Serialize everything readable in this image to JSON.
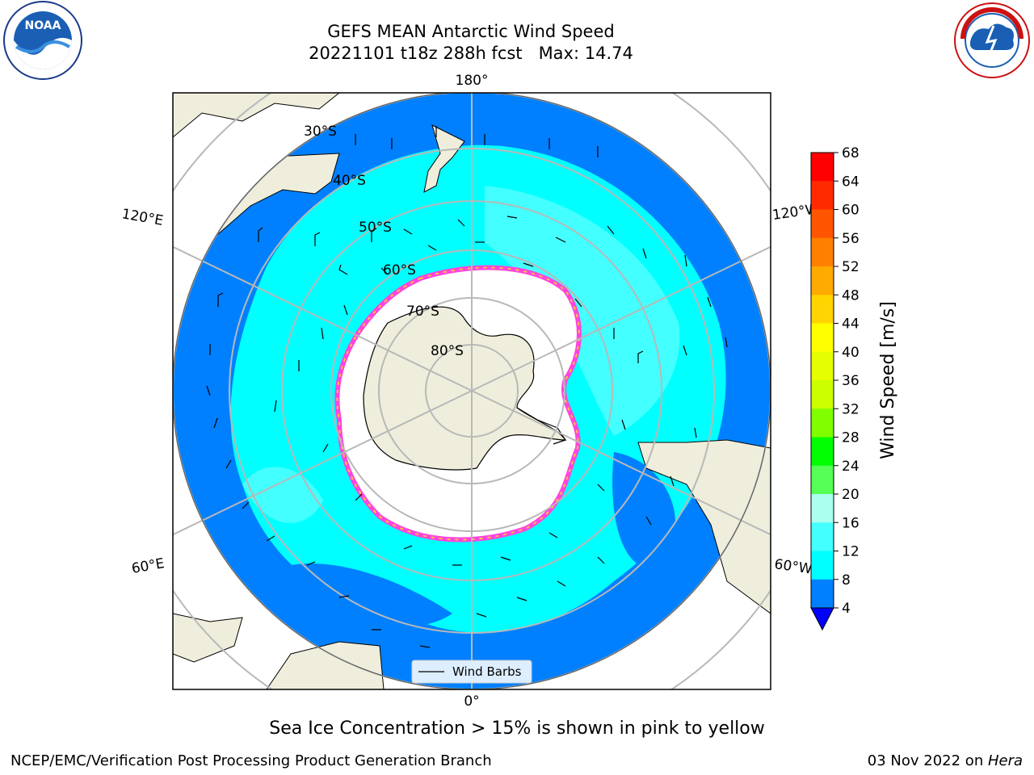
{
  "header": {
    "title_line1": "GEFS MEAN Antarctic Wind Speed",
    "title_line2": "20221101 t18z 288h fcst   Max: 14.74"
  },
  "logos": {
    "left": {
      "name": "noaa-logo",
      "text": "NOAA",
      "ring_text": "NATIONAL OCEANIC AND ATMOSPHERIC ADMINISTRATION · U.S. DEPARTMENT OF COMMERCE"
    },
    "right": {
      "name": "nws-logo",
      "ring_text": "NATIONAL WEATHER SERVICE"
    }
  },
  "map": {
    "projection": "south-polar-stereographic",
    "latitude_labels": [
      "30°S",
      "40°S",
      "50°S",
      "60°S",
      "70°S",
      "80°S"
    ],
    "longitude_labels": {
      "top": "180°",
      "bottom": "0°",
      "upper_left": "120°E",
      "upper_right": "120°W",
      "lower_left": "60°E",
      "lower_right": "60°W"
    },
    "legend": {
      "entry": "Wind Barbs"
    },
    "colors": {
      "ocean_4_8": "#0080ff",
      "ocean_8_12": "#00ffff",
      "ocean_12_16": "#44ffff",
      "land": "#efeedc",
      "sea_ice_edge_pink": "#ff44dd",
      "sea_ice_edge_yellow": "#ffc044",
      "grid": "#b8b8b8"
    }
  },
  "colorbar": {
    "label": "Wind Speed [m/s]",
    "ticks": [
      "68",
      "64",
      "60",
      "56",
      "52",
      "48",
      "44",
      "40",
      "36",
      "32",
      "28",
      "24",
      "20",
      "16",
      "12",
      "8",
      "4"
    ],
    "colors": [
      "#ff0000",
      "#ff2a00",
      "#ff5500",
      "#ff8000",
      "#ffaa00",
      "#ffd400",
      "#ffff00",
      "#e6ff00",
      "#ccff00",
      "#80ff00",
      "#00ff00",
      "#55ff55",
      "#aaffee",
      "#44ffff",
      "#00ffff",
      "#0080ff"
    ],
    "under_color": "#0000ff"
  },
  "footer": {
    "note": "Sea Ice Concentration > 15% is shown in pink to yellow",
    "left": "NCEP/EMC/Verification Post Processing Product Generation Branch",
    "date": "03 Nov 2022 on ",
    "host": "Hera"
  }
}
